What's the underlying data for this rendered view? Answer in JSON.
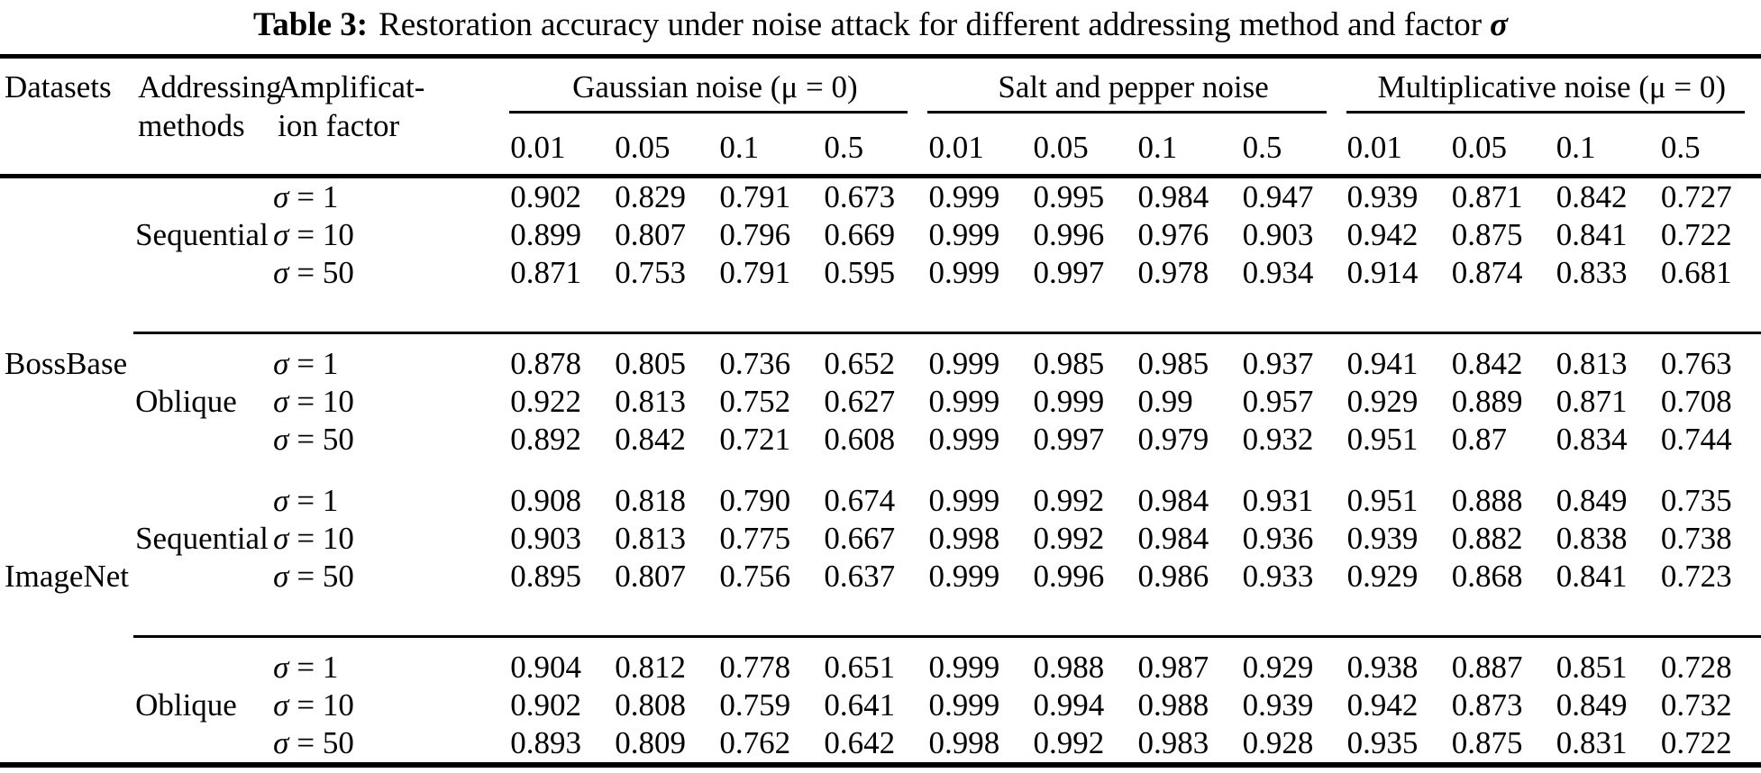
{
  "title": {
    "label": "Table 3:",
    "text": "Restoration accuracy under noise attack for different addressing method and factor",
    "sigma": "σ"
  },
  "table": {
    "columns": {
      "datasets": "Datasets",
      "addressing_line1": "Addressing",
      "addressing_line2": "methods",
      "amplification_line1": "Amplificat-",
      "amplification_line2": "ion factor"
    },
    "sigma": "σ",
    "groups": [
      {
        "label": "Gaussian noise (μ = 0)",
        "levels": [
          "0.01",
          "0.05",
          "0.1",
          "0.5"
        ]
      },
      {
        "label": "Salt and pepper noise",
        "levels": [
          "0.01",
          "0.05",
          "0.1",
          "0.5"
        ]
      },
      {
        "label": "Multiplicative noise (μ = 0)",
        "levels": [
          "0.01",
          "0.05",
          "0.1",
          "0.5"
        ]
      }
    ],
    "rows": [
      {
        "dataset": "",
        "method": "",
        "factor": "= 1",
        "values": [
          "0.902",
          "0.829",
          "0.791",
          "0.673",
          "0.999",
          "0.995",
          "0.984",
          "0.947",
          "0.939",
          "0.871",
          "0.842",
          "0.727"
        ]
      },
      {
        "dataset": "",
        "method": "Sequential",
        "factor": "= 10",
        "values": [
          "0.899",
          "0.807",
          "0.796",
          "0.669",
          "0.999",
          "0.996",
          "0.976",
          "0.903",
          "0.942",
          "0.875",
          "0.841",
          "0.722"
        ]
      },
      {
        "dataset": "",
        "method": "",
        "factor": "= 50",
        "values": [
          "0.871",
          "0.753",
          "0.791",
          "0.595",
          "0.999",
          "0.997",
          "0.978",
          "0.934",
          "0.914",
          "0.874",
          "0.833",
          "0.681"
        ]
      },
      {
        "dataset": "BossBase",
        "method": "",
        "factor": "= 1",
        "values": [
          "0.878",
          "0.805",
          "0.736",
          "0.652",
          "0.999",
          "0.985",
          "0.985",
          "0.937",
          "0.941",
          "0.842",
          "0.813",
          "0.763"
        ]
      },
      {
        "dataset": "",
        "method": "Oblique",
        "factor": "= 10",
        "values": [
          "0.922",
          "0.813",
          "0.752",
          "0.627",
          "0.999",
          "0.999",
          "0.99",
          "0.957",
          "0.929",
          "0.889",
          "0.871",
          "0.708"
        ]
      },
      {
        "dataset": "",
        "method": "",
        "factor": "= 50",
        "values": [
          "0.892",
          "0.842",
          "0.721",
          "0.608",
          "0.999",
          "0.997",
          "0.979",
          "0.932",
          "0.951",
          "0.87",
          "0.834",
          "0.744"
        ]
      },
      {
        "dataset": "",
        "method": "",
        "factor": "= 1",
        "values": [
          "0.908",
          "0.818",
          "0.790",
          "0.674",
          "0.999",
          "0.992",
          "0.984",
          "0.931",
          "0.951",
          "0.888",
          "0.849",
          "0.735"
        ]
      },
      {
        "dataset": "",
        "method": "Sequential",
        "factor": "= 10",
        "values": [
          "0.903",
          "0.813",
          "0.775",
          "0.667",
          "0.998",
          "0.992",
          "0.984",
          "0.936",
          "0.939",
          "0.882",
          "0.838",
          "0.738"
        ]
      },
      {
        "dataset": "ImageNet",
        "method": "",
        "factor": "= 50",
        "values": [
          "0.895",
          "0.807",
          "0.756",
          "0.637",
          "0.999",
          "0.996",
          "0.986",
          "0.933",
          "0.929",
          "0.868",
          "0.841",
          "0.723"
        ]
      },
      {
        "dataset": "",
        "method": "",
        "factor": "= 1",
        "values": [
          "0.904",
          "0.812",
          "0.778",
          "0.651",
          "0.999",
          "0.988",
          "0.987",
          "0.929",
          "0.938",
          "0.887",
          "0.851",
          "0.728"
        ]
      },
      {
        "dataset": "",
        "method": "Oblique",
        "factor": "= 10",
        "values": [
          "0.902",
          "0.808",
          "0.759",
          "0.641",
          "0.999",
          "0.994",
          "0.988",
          "0.939",
          "0.942",
          "0.873",
          "0.849",
          "0.732"
        ]
      },
      {
        "dataset": "",
        "method": "",
        "factor": "= 50",
        "values": [
          "0.893",
          "0.809",
          "0.762",
          "0.642",
          "0.998",
          "0.992",
          "0.983",
          "0.928",
          "0.935",
          "0.875",
          "0.831",
          "0.722"
        ]
      }
    ]
  }
}
